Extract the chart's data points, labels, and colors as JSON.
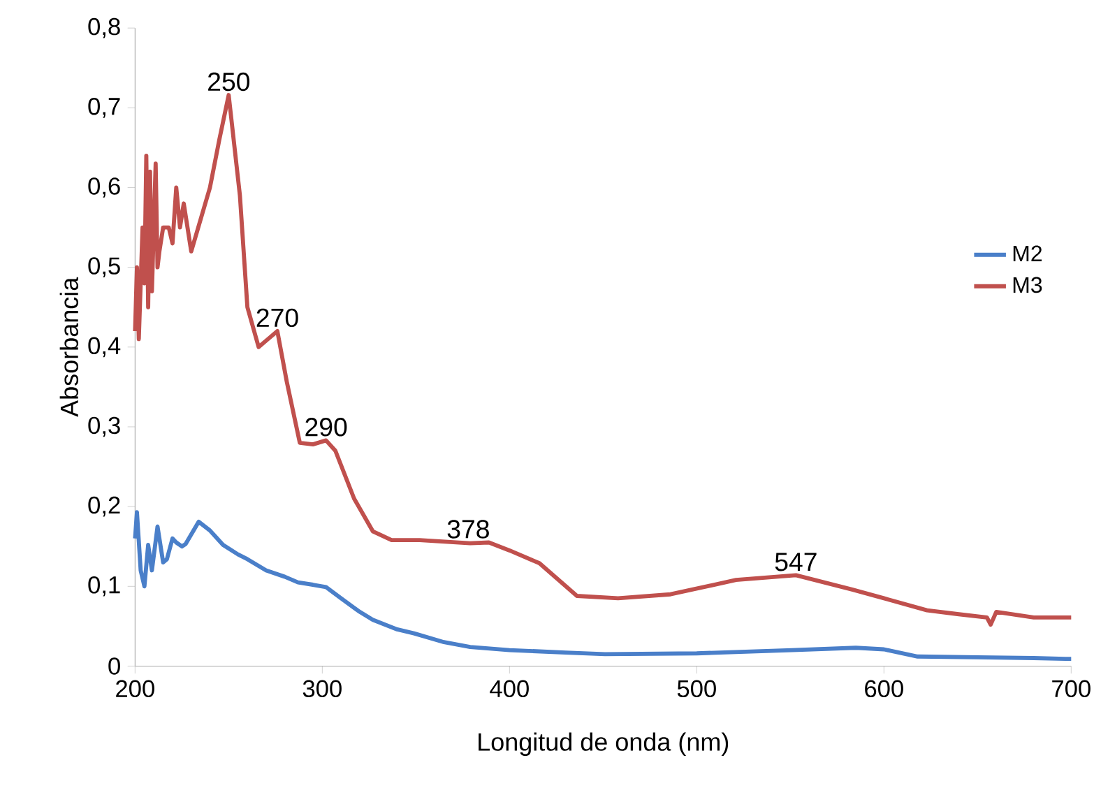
{
  "chart_data": {
    "type": "line",
    "xlabel": "Longitud de onda (nm)",
    "ylabel": "Absorbancia",
    "xlim": [
      200,
      700
    ],
    "ylim": [
      0,
      0.8
    ],
    "xticks": [
      200,
      300,
      400,
      500,
      600,
      700
    ],
    "yticks": [
      0,
      {
        "value": 0.1,
        "label": "0,1"
      },
      {
        "value": 0.2,
        "label": "0,2"
      },
      {
        "value": 0.3,
        "label": "0,3"
      },
      {
        "value": 0.4,
        "label": "0,4"
      },
      {
        "value": 0.5,
        "label": "0,5"
      },
      {
        "value": 0.6,
        "label": "0,6"
      },
      {
        "value": 0.7,
        "label": "0,7"
      },
      {
        "value": 0.8,
        "label": "0,8"
      }
    ],
    "grid": false,
    "legend": "right",
    "marker": "none",
    "line_style": "solid",
    "series": [
      {
        "name": "M2",
        "color": "#4a7fc9",
        "x": [
          200,
          201,
          203,
          205,
          207,
          209,
          212,
          215,
          217,
          220,
          222,
          225,
          227,
          230,
          234,
          240,
          247,
          255,
          260,
          270,
          280,
          287,
          295,
          302,
          310,
          320,
          327,
          340,
          349,
          365,
          379,
          400,
          430,
          451,
          500,
          551,
          585,
          600,
          618,
          650,
          680,
          697,
          700
        ],
        "values": [
          0.16,
          0.193,
          0.12,
          0.1,
          0.152,
          0.12,
          0.175,
          0.13,
          0.134,
          0.16,
          0.155,
          0.15,
          0.153,
          0.165,
          0.181,
          0.17,
          0.152,
          0.14,
          0.134,
          0.12,
          0.112,
          0.105,
          0.102,
          0.099,
          0.085,
          0.068,
          0.058,
          0.046,
          0.041,
          0.03,
          0.024,
          0.02,
          0.017,
          0.015,
          0.016,
          0.02,
          0.023,
          0.021,
          0.012,
          0.011,
          0.01,
          0.009,
          0.009
        ]
      },
      {
        "name": "M3",
        "color": "#c0504d",
        "x": [
          200,
          201,
          202,
          204,
          205,
          206,
          207,
          208,
          209,
          210,
          211,
          212,
          213,
          215,
          218,
          220,
          222,
          224,
          226,
          228,
          230,
          240,
          245,
          250,
          256,
          260,
          266,
          271,
          276,
          281,
          288,
          295,
          302,
          307,
          317,
          327,
          337,
          352,
          379,
          389,
          400,
          416,
          436,
          458,
          486,
          521,
          553,
          583,
          600,
          623,
          640,
          655,
          657,
          660,
          680,
          697,
          700
        ],
        "values": [
          0.42,
          0.5,
          0.41,
          0.55,
          0.48,
          0.64,
          0.45,
          0.62,
          0.47,
          0.55,
          0.63,
          0.5,
          0.52,
          0.55,
          0.55,
          0.53,
          0.6,
          0.55,
          0.58,
          0.55,
          0.52,
          0.6,
          0.66,
          0.716,
          0.59,
          0.45,
          0.4,
          0.41,
          0.42,
          0.357,
          0.28,
          0.278,
          0.283,
          0.27,
          0.21,
          0.169,
          0.158,
          0.158,
          0.154,
          0.155,
          0.145,
          0.129,
          0.088,
          0.085,
          0.09,
          0.108,
          0.114,
          0.096,
          0.085,
          0.07,
          0.065,
          0.061,
          0.052,
          0.068,
          0.061,
          0.061,
          0.061
        ]
      }
    ],
    "annotations": [
      {
        "text": "250",
        "x": 250,
        "y": 0.716
      },
      {
        "text": "270",
        "x": 276,
        "y": 0.42
      },
      {
        "text": "290",
        "x": 302,
        "y": 0.283
      },
      {
        "text": "378",
        "x": 378,
        "y": 0.155
      },
      {
        "text": "547",
        "x": 553,
        "y": 0.114
      }
    ]
  }
}
